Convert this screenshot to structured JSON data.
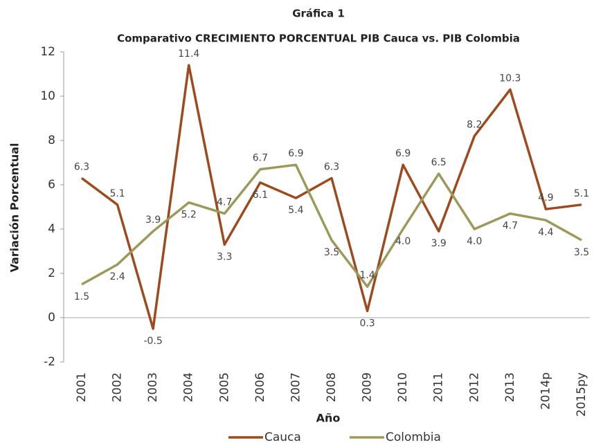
{
  "chart_data": {
    "type": "line",
    "title": "Gráfica 1",
    "subtitle": "Comparativo CRECIMIENTO PORCENTUAL PIB Cauca vs. PIB Colombia",
    "x_label": "Año",
    "y_label": "Variación Porcentual",
    "categories": [
      "2001",
      "2002",
      "2003",
      "2004",
      "2005",
      "2006",
      "2007",
      "2008",
      "2009",
      "2010",
      "2011",
      "2012",
      "2013",
      "2014p",
      "2015py"
    ],
    "series": [
      {
        "name": "Cauca",
        "color": "#9c4a1e",
        "values": [
          6.3,
          5.1,
          -0.5,
          11.4,
          3.3,
          6.1,
          5.4,
          6.3,
          0.3,
          6.9,
          3.9,
          8.2,
          10.3,
          4.9,
          5.1
        ],
        "value_labels": [
          "6.3",
          "5.1",
          "-0.5",
          "11.4",
          "3.3",
          "6.1",
          "5.4",
          "6.3",
          "0.3",
          "6.9",
          "3.9",
          "8.2",
          "10.3",
          "4.9",
          "5.1"
        ]
      },
      {
        "name": "Colombia",
        "color": "#9b9a5c",
        "values": [
          1.5,
          2.4,
          3.9,
          5.2,
          4.7,
          6.7,
          6.9,
          3.5,
          1.4,
          4.0,
          6.5,
          4.0,
          4.7,
          4.4,
          3.5
        ],
        "value_labels": [
          "1.5",
          "2.4",
          "3.9",
          "5.2",
          "4.7",
          "6.7",
          "6.9",
          "3.5",
          "1.4",
          "4.0",
          "6.5",
          "4.0",
          "4.7",
          "4.4",
          "3.5"
        ]
      }
    ],
    "ylim": [
      -2,
      12
    ],
    "yticks": [
      -2,
      0,
      2,
      4,
      6,
      8,
      10,
      12
    ],
    "grid": false,
    "legend": "bottom"
  }
}
